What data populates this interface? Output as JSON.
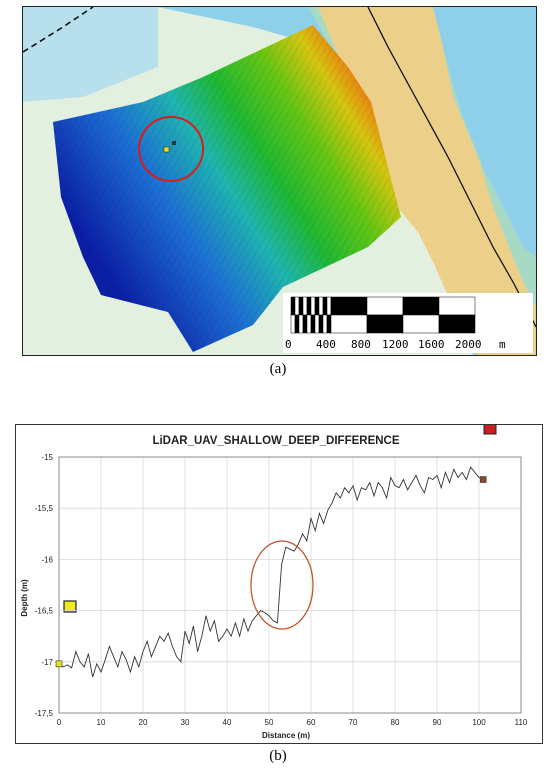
{
  "figure_a": {
    "caption": "(a)",
    "scale_bar": {
      "labels": [
        "0",
        "400",
        "800",
        "1200",
        "1600",
        "2000"
      ],
      "unit": "m"
    },
    "colors": {
      "land": "#ecd08a",
      "shallow_sea": "#b8e0ec",
      "water": "#8ed0ea",
      "lowland": "#e3f0df",
      "highlight_circle": "#d91c1c"
    }
  },
  "figure_b": {
    "caption": "(b)",
    "chart_data": {
      "type": "line",
      "title": "LiDAR_UAV_SHALLOW_DEEP_DIFFERENCE",
      "xlabel": "Distance (m)",
      "ylabel": "Depth (m)",
      "xlim": [
        0,
        110
      ],
      "ylim": [
        -17.5,
        -15
      ],
      "xticks": [
        "0",
        "10",
        "20",
        "30",
        "40",
        "50",
        "60",
        "70",
        "80",
        "90",
        "100",
        "110"
      ],
      "yticks": [
        "-15",
        "-15,5",
        "-16",
        "-16,5",
        "-17",
        "-17,5"
      ],
      "grid": true,
      "series": [
        {
          "x": [
            0,
            1,
            2,
            3,
            4,
            5,
            6,
            7,
            8,
            9,
            10,
            11,
            12,
            13,
            14,
            15,
            16,
            17,
            18,
            19,
            20,
            21,
            22,
            23,
            24,
            25,
            26,
            27,
            28,
            29,
            30,
            31,
            32,
            33,
            34,
            35,
            36,
            37,
            38,
            39,
            40,
            41,
            42,
            43,
            44,
            45,
            46,
            47,
            48,
            49,
            50,
            51,
            52,
            53,
            54,
            55,
            56,
            57,
            58,
            59,
            60,
            61,
            62,
            63,
            64,
            65,
            66,
            67,
            68,
            69,
            70,
            71,
            72,
            73,
            74,
            75,
            76,
            77,
            78,
            79,
            80,
            81,
            82,
            83,
            84,
            85,
            86,
            87,
            88,
            89,
            90,
            91,
            92,
            93,
            94,
            95,
            96,
            97,
            98,
            99,
            100,
            101
          ],
          "y": [
            -17.02,
            -17.05,
            -17.03,
            -17.06,
            -16.9,
            -17.0,
            -17.05,
            -16.92,
            -17.15,
            -17.02,
            -17.1,
            -16.98,
            -16.85,
            -16.95,
            -17.05,
            -16.9,
            -16.98,
            -17.1,
            -16.95,
            -17.05,
            -16.9,
            -16.8,
            -16.95,
            -16.85,
            -16.75,
            -16.8,
            -16.72,
            -16.85,
            -16.95,
            -17.0,
            -16.7,
            -16.82,
            -16.65,
            -16.9,
            -16.75,
            -16.55,
            -16.7,
            -16.6,
            -16.8,
            -16.75,
            -16.68,
            -16.75,
            -16.62,
            -16.75,
            -16.58,
            -16.7,
            -16.6,
            -16.55,
            -16.5,
            -16.52,
            -16.55,
            -16.6,
            -16.62,
            -16.05,
            -15.88,
            -15.9,
            -15.92,
            -15.85,
            -15.75,
            -15.82,
            -15.6,
            -15.72,
            -15.55,
            -15.65,
            -15.52,
            -15.45,
            -15.35,
            -15.4,
            -15.3,
            -15.35,
            -15.28,
            -15.42,
            -15.3,
            -15.32,
            -15.25,
            -15.38,
            -15.25,
            -15.3,
            -15.4,
            -15.2,
            -15.28,
            -15.3,
            -15.22,
            -15.32,
            -15.25,
            -15.18,
            -15.28,
            -15.35,
            -15.2,
            -15.22,
            -15.18,
            -15.3,
            -15.15,
            -15.25,
            -15.12,
            -15.2,
            -15.15,
            -15.22,
            -15.1,
            -15.15,
            -15.2,
            -15.22
          ]
        }
      ]
    }
  }
}
